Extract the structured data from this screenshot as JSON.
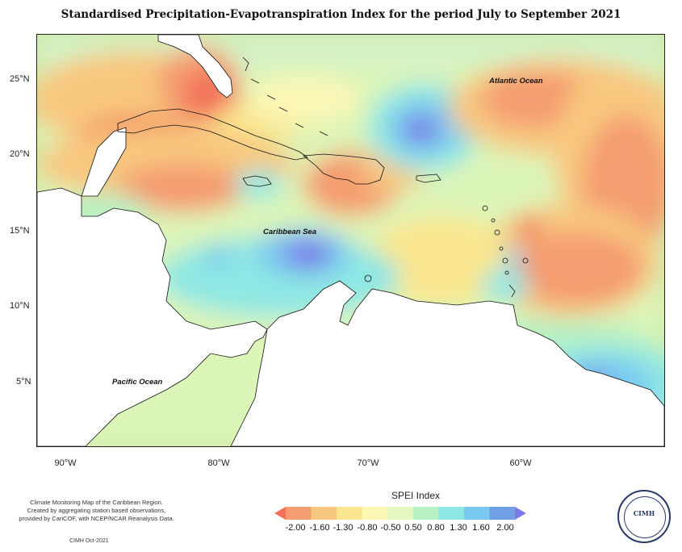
{
  "title": "Standardised Precipitation-Evapotranspiration Index for the period July to September 2021",
  "map": {
    "ocean_labels": {
      "atlantic": "Atlantic Ocean",
      "caribbean": "Caribbean Sea",
      "pacific": "Pacific Ocean"
    },
    "lat_ticks": [
      "25°N",
      "20°N",
      "15°N",
      "10°N",
      "5°N"
    ],
    "lon_ticks": [
      "90°W",
      "80°W",
      "70°W",
      "60°W"
    ]
  },
  "legend": {
    "title": "SPEI Index",
    "labels": [
      "-2.00",
      "-1.60",
      "-1.30",
      "-0.80",
      "-0.50",
      "0.50",
      "0.80",
      "1.30",
      "1.60",
      "2.00"
    ],
    "colors": [
      "#f2715a",
      "#f59c70",
      "#f8c77f",
      "#fae68e",
      "#fbf7b5",
      "#e6f8c2",
      "#b9f1c3",
      "#8fe7e4",
      "#79c9f0",
      "#6fa0e6",
      "#7b7be8"
    ]
  },
  "credits": {
    "line1": "Climate Monitoring Map of the Caribbean Region.",
    "line2": "Created by aggregating station based observations,",
    "line3": "provided by CariCOF, with NCEP/NCAR Reanalysis Data.",
    "stamp": "CIMH Oct-2021"
  },
  "logo": {
    "text": "CIMH"
  }
}
